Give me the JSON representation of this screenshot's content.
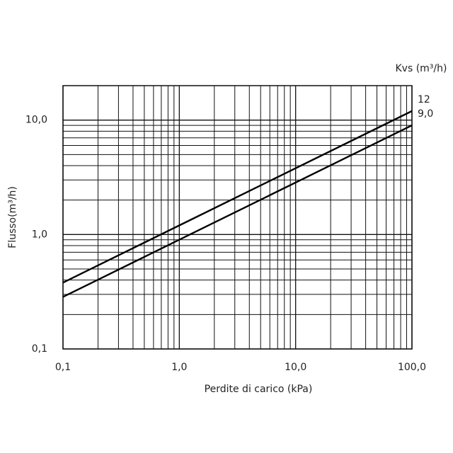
{
  "chart_data": {
    "type": "line",
    "xlabel": "Perdite di carico (kPa)",
    "ylabel": "Flusso(m³/h)",
    "legend_title": "Kvs (m³/h)",
    "x": [
      0.1,
      100
    ],
    "series": [
      {
        "name": "12",
        "color": "#000000",
        "values": [
          0.38,
          12
        ]
      },
      {
        "name": "9,0",
        "color": "#000000",
        "values": [
          0.285,
          9
        ]
      }
    ],
    "xlog": true,
    "ylog": true,
    "xlim": [
      0.1,
      100
    ],
    "ylim": [
      0.1,
      20
    ],
    "xticks": [
      {
        "value": 0.1,
        "label": "0,1"
      },
      {
        "value": 1,
        "label": "1,0"
      },
      {
        "value": 10,
        "label": "10,0"
      },
      {
        "value": 100,
        "label": "100,0"
      }
    ],
    "yticks": [
      {
        "value": 0.1,
        "label": "0,1"
      },
      {
        "value": 1,
        "label": "1,0"
      },
      {
        "value": 10,
        "label": "10,0"
      }
    ],
    "xminorticks": [
      0.2,
      0.3,
      0.4,
      0.5,
      0.6,
      0.7,
      0.8,
      0.9,
      2,
      3,
      4,
      5,
      6,
      7,
      8,
      9,
      20,
      30,
      40,
      50,
      60,
      70,
      80,
      90
    ],
    "yminorticks": [
      0.2,
      0.3,
      0.4,
      0.5,
      0.6,
      0.7,
      0.8,
      0.9,
      2,
      3,
      4,
      5,
      6,
      7,
      8,
      9,
      20
    ],
    "grid": true
  }
}
